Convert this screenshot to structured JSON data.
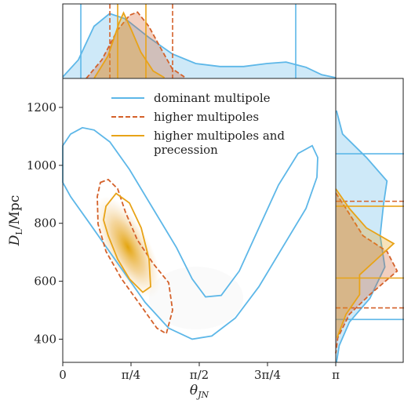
{
  "chart_data": [
    {
      "type": "contour",
      "xlim": [
        0,
        3.1416
      ],
      "ylim": [
        320,
        1300
      ],
      "xticks": [
        0,
        {
          "value": 0.7854,
          "label": "π/4"
        },
        {
          "value": 1.5708,
          "label": "π/2"
        },
        {
          "value": 2.3562,
          "label": "3π/4"
        },
        {
          "value": 3.1416,
          "label": "π"
        }
      ],
      "yticks": [
        400,
        600,
        800,
        1000,
        1200
      ],
      "xlabel": {
        "main": "θ",
        "sub": "JN"
      },
      "ylabel": {
        "main": "D",
        "sub": "L",
        "rest": "/Mpc"
      },
      "series": [
        {
          "name": "dominant multipole",
          "color": "#5DB7E8",
          "dash": false,
          "x": [
            0,
            0.09,
            0.226,
            0.361,
            0.542,
            0.767,
            1.038,
            1.309,
            1.49,
            1.643,
            1.824,
            2.031,
            2.257,
            2.483,
            2.708,
            2.871,
            2.934,
            2.925,
            2.799,
            2.528,
            2.257,
            1.986,
            1.715,
            1.49,
            1.219,
            0.948,
            0.632,
            0.316,
            0.09,
            0
          ],
          "y": [
            1068,
            1108,
            1130,
            1122,
            1081,
            986,
            851,
            716,
            608,
            546,
            551,
            635,
            784,
            932,
            1041,
            1068,
            1027,
            959,
            851,
            716,
            581,
            473,
            411,
            400,
            438,
            527,
            662,
            797,
            892,
            941
          ]
        },
        {
          "name": "higher multipoles",
          "color": "#D4612A",
          "dash": true,
          "x": [
            0.433,
            0.524,
            0.632,
            0.722,
            0.858,
            1.038,
            1.219,
            1.264,
            1.192,
            1.083,
            0.903,
            0.677,
            0.497,
            0.406,
            0.397,
            0.433
          ],
          "y": [
            941,
            951,
            919,
            838,
            743,
            662,
            595,
            500,
            419,
            438,
            514,
            608,
            703,
            797,
            892,
            941
          ]
        },
        {
          "name": "higher multipoles and precession",
          "color": "#E8A317",
          "dash": false,
          "x": [
            0.497,
            0.614,
            0.767,
            0.903,
            0.993,
            1.011,
            0.921,
            0.767,
            0.632,
            0.524,
            0.469,
            0.497
          ],
          "y": [
            859,
            903,
            870,
            784,
            676,
            581,
            562,
            608,
            676,
            757,
            811,
            859
          ]
        }
      ]
    },
    {
      "type": "density",
      "orientation": "vertical",
      "xlim": [
        0,
        3.1416
      ],
      "ylim": [
        0,
        1
      ],
      "series": [
        {
          "color": "#5DB7E8",
          "dash": false,
          "interval": [
            0.208,
            2.681
          ],
          "x": [
            0,
            0.18,
            0.36,
            0.54,
            0.72,
            0.99,
            1.26,
            1.53,
            1.81,
            2.08,
            2.35,
            2.57,
            2.8,
            2.98,
            3.14
          ],
          "values": [
            0.02,
            0.25,
            0.7,
            0.87,
            0.8,
            0.55,
            0.33,
            0.2,
            0.16,
            0.16,
            0.2,
            0.22,
            0.15,
            0.05,
            0.01
          ]
        },
        {
          "color": "#D4612A",
          "dash": true,
          "interval": [
            0.542,
            1.264
          ],
          "x": [
            0.27,
            0.45,
            0.63,
            0.77,
            0.86,
            0.99,
            1.13,
            1.26,
            1.4
          ],
          "values": [
            0,
            0.25,
            0.65,
            0.85,
            0.89,
            0.7,
            0.4,
            0.13,
            0.02
          ]
        },
        {
          "color": "#E8A317",
          "dash": false,
          "interval": [
            0.632,
            0.957
          ],
          "x": [
            0.36,
            0.52,
            0.65,
            0.7,
            0.79,
            0.9,
            1.04,
            1.17
          ],
          "values": [
            0,
            0.3,
            0.75,
            0.88,
            0.65,
            0.35,
            0.1,
            0.01
          ]
        }
      ]
    },
    {
      "type": "density",
      "orientation": "horizontal",
      "ylim": [
        320,
        1300
      ],
      "xlim": [
        0,
        1
      ],
      "series": [
        {
          "color": "#5DB7E8",
          "dash": false,
          "interval": [
            468,
            1040
          ],
          "y": [
            1189,
            1108,
            1027,
            946,
            865,
            757,
            649,
            541,
            459,
            378,
            319
          ],
          "values": [
            0.01,
            0.1,
            0.45,
            0.75,
            0.7,
            0.65,
            0.72,
            0.5,
            0.2,
            0.05,
            0.01
          ]
        },
        {
          "color": "#D4612A",
          "dash": true,
          "interval": [
            508,
            876
          ],
          "y": [
            905,
            851,
            757,
            703,
            635,
            554,
            486,
            405,
            351
          ],
          "values": [
            0,
            0.15,
            0.4,
            0.75,
            0.9,
            0.5,
            0.2,
            0.03,
            0
          ]
        },
        {
          "color": "#E8A317",
          "dash": false,
          "interval": [
            611,
            859
          ],
          "y": [
            919,
            851,
            784,
            730,
            676,
            622,
            554,
            486,
            405
          ],
          "values": [
            0,
            0.2,
            0.45,
            0.85,
            0.6,
            0.35,
            0.35,
            0.15,
            0.02
          ]
        }
      ]
    }
  ]
}
